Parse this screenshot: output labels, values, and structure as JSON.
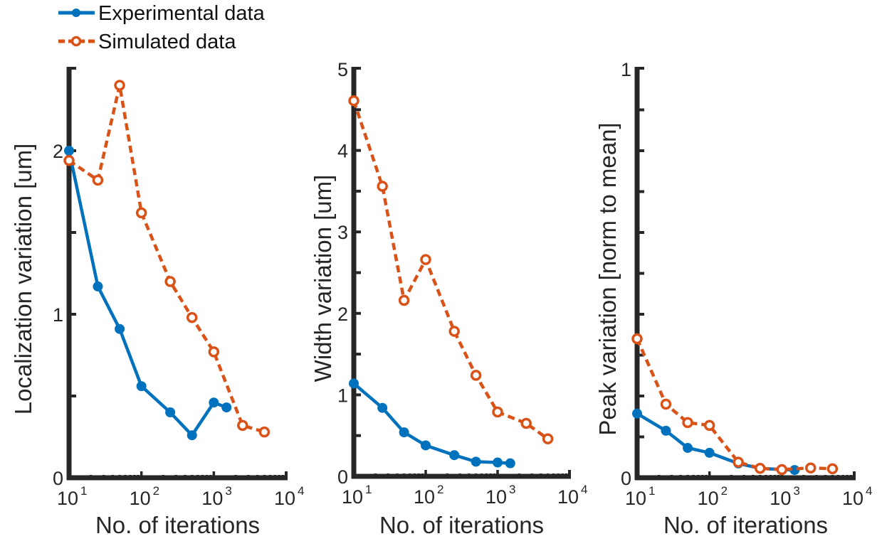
{
  "legend": {
    "entries": [
      {
        "label": "Experimental data",
        "color": "#0072BD",
        "style": "solid",
        "marker": "filled-circle"
      },
      {
        "label": "Simulated data",
        "color": "#D95319",
        "style": "dashed",
        "marker": "open-circle"
      }
    ]
  },
  "colors": {
    "experimental": "#0072BD",
    "simulated": "#D95319",
    "axis": "#262626"
  },
  "chart_data": [
    {
      "type": "line",
      "title": "",
      "xlabel": "No. of iterations",
      "ylabel": "Localization variation [um]",
      "xscale": "log",
      "xlim": [
        10,
        10000
      ],
      "ylim": [
        0,
        2.5
      ],
      "xticks": [
        {
          "base": "10",
          "exp": "1"
        },
        {
          "base": "10",
          "exp": "2"
        },
        {
          "base": "10",
          "exp": "3"
        },
        {
          "base": "10",
          "exp": "4"
        }
      ],
      "yticks": [
        "0",
        "1",
        "2"
      ],
      "yticks_values": [
        0,
        1,
        2
      ],
      "yminor_step": 0.5,
      "grid": false,
      "series": [
        {
          "name": "Experimental data",
          "x": [
            10,
            25,
            50,
            100,
            250,
            500,
            1000,
            1500
          ],
          "values": [
            2.0,
            1.17,
            0.91,
            0.56,
            0.4,
            0.26,
            0.46,
            0.43
          ]
        },
        {
          "name": "Simulated data",
          "x": [
            10,
            25,
            50,
            100,
            250,
            500,
            1000,
            2500,
            5000
          ],
          "values": [
            1.94,
            1.82,
            2.4,
            1.62,
            1.2,
            0.98,
            0.77,
            0.32,
            0.28
          ]
        }
      ]
    },
    {
      "type": "line",
      "title": "",
      "xlabel": "No. of iterations",
      "ylabel": "Width variation [um]",
      "xscale": "log",
      "xlim": [
        10,
        10000
      ],
      "ylim": [
        0,
        5
      ],
      "xticks": [
        {
          "base": "10",
          "exp": "1"
        },
        {
          "base": "10",
          "exp": "2"
        },
        {
          "base": "10",
          "exp": "3"
        },
        {
          "base": "10",
          "exp": "4"
        }
      ],
      "yticks": [
        "0",
        "1",
        "2",
        "3",
        "4",
        "5"
      ],
      "yticks_values": [
        0,
        1,
        2,
        3,
        4,
        5
      ],
      "yminor_step": 0.5,
      "grid": false,
      "series": [
        {
          "name": "Experimental data",
          "x": [
            10,
            25,
            50,
            100,
            250,
            500,
            1000,
            1500
          ],
          "values": [
            1.14,
            0.84,
            0.54,
            0.38,
            0.26,
            0.18,
            0.17,
            0.16
          ]
        },
        {
          "name": "Simulated data",
          "x": [
            10,
            25,
            50,
            100,
            250,
            500,
            1000,
            2500,
            5000
          ],
          "values": [
            4.61,
            3.56,
            2.16,
            2.66,
            1.78,
            1.24,
            0.79,
            0.65,
            0.46
          ]
        }
      ]
    },
    {
      "type": "line",
      "title": "",
      "xlabel": "No. of iterations",
      "ylabel": "Peak variation [norm to mean]",
      "xscale": "log",
      "xlim": [
        10,
        10000
      ],
      "ylim": [
        0,
        1
      ],
      "xticks": [
        {
          "base": "10",
          "exp": "1"
        },
        {
          "base": "10",
          "exp": "2"
        },
        {
          "base": "10",
          "exp": "3"
        },
        {
          "base": "10",
          "exp": "4"
        }
      ],
      "yticks": [
        "0",
        "1"
      ],
      "yticks_values": [
        0,
        1
      ],
      "yminor_step": 0.1,
      "grid": false,
      "series": [
        {
          "name": "Experimental data",
          "x": [
            10,
            25,
            50,
            100,
            250,
            500,
            1000,
            1500
          ],
          "values": [
            0.157,
            0.115,
            0.073,
            0.061,
            0.035,
            0.023,
            0.02,
            0.019
          ]
        },
        {
          "name": "Simulated data",
          "x": [
            10,
            25,
            50,
            100,
            250,
            500,
            1000,
            2500,
            5000
          ],
          "values": [
            0.34,
            0.18,
            0.135,
            0.128,
            0.038,
            0.023,
            0.02,
            0.024,
            0.022
          ]
        }
      ]
    }
  ]
}
